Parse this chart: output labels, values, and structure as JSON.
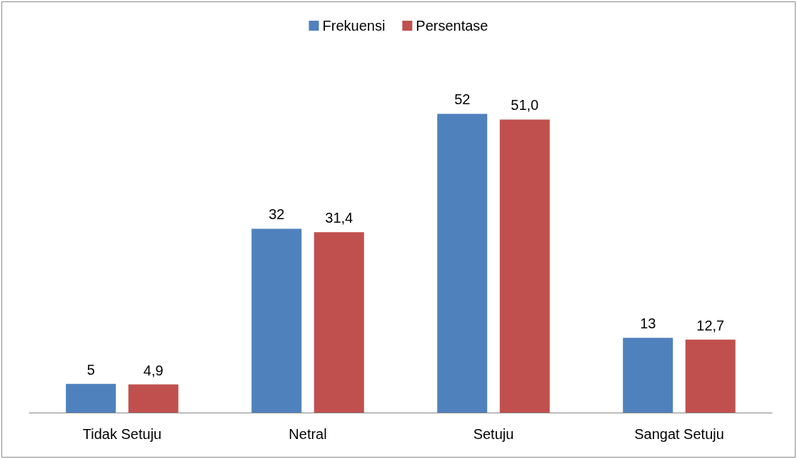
{
  "chart_data": {
    "type": "bar",
    "categories": [
      "Tidak Setuju",
      "Netral",
      "Setuju",
      "Sangat Setuju"
    ],
    "series": [
      {
        "name": "Frekuensi",
        "color": "#4f81bd",
        "values": [
          5,
          32,
          52,
          13
        ],
        "value_labels": [
          "5",
          "32",
          "52",
          "13"
        ]
      },
      {
        "name": "Persentase",
        "color": "#c0504d",
        "values": [
          4.9,
          31.4,
          51.0,
          12.7
        ],
        "value_labels": [
          "4,9",
          "31,4",
          "51,0",
          "12,7"
        ]
      }
    ],
    "legend": "top",
    "grid": false,
    "tick_labels": "x"
  }
}
